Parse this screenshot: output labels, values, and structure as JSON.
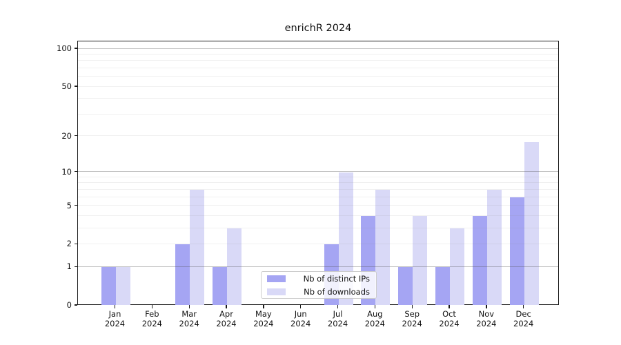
{
  "chart_data": {
    "type": "bar",
    "title": "enrichR 2024",
    "categories": [
      "Jan 2024",
      "Feb 2024",
      "Mar 2024",
      "Apr 2024",
      "May 2024",
      "Jun 2024",
      "Jul 2024",
      "Aug 2024",
      "Sep 2024",
      "Oct 2024",
      "Nov 2024",
      "Dec 2024"
    ],
    "series": [
      {
        "name": "Nb of distinct IPs",
        "color": "#a5a5f3",
        "values": [
          1,
          0,
          2,
          1,
          0,
          0,
          2,
          4,
          1,
          1,
          4,
          6
        ]
      },
      {
        "name": "Nb of downloads",
        "color": "#d9d9f7",
        "values": [
          1,
          0,
          7,
          3,
          0,
          0,
          10,
          7,
          4,
          3,
          7,
          18
        ]
      }
    ],
    "yscale": "log1p",
    "ylim": [
      0,
      115
    ],
    "ytick_values": [
      100,
      50,
      20,
      10,
      5,
      2,
      1,
      0
    ],
    "ytick_labels": [
      "100",
      "50",
      "20",
      "10",
      "5",
      "2",
      "1",
      "0"
    ],
    "grid": {
      "major_values": [
        1,
        10,
        100
      ],
      "minor_values": [
        2,
        3,
        4,
        5,
        6,
        7,
        8,
        9,
        20,
        30,
        40,
        50,
        60,
        70,
        80,
        90
      ],
      "major_color": "rgba(80,80,80,0.35)",
      "minor_color": "rgba(140,140,140,0.13)"
    },
    "legend": {
      "position": "lower center"
    },
    "axis_color": "#1a1a1a"
  }
}
